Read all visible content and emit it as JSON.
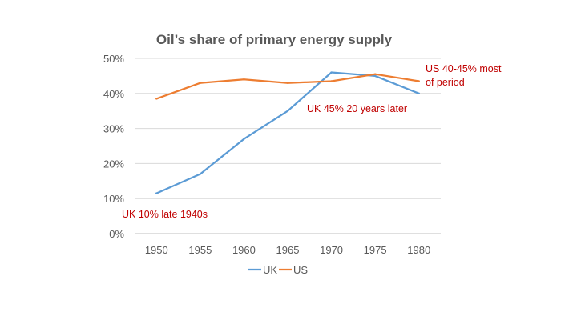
{
  "chart_data": {
    "type": "line",
    "title": "Oil’s share of primary energy supply",
    "xlabel": "",
    "ylabel": "",
    "x": [
      "1950",
      "1955",
      "1960",
      "1965",
      "1970",
      "1975",
      "1980"
    ],
    "ylim": [
      0,
      50
    ],
    "yticks": [
      "0%",
      "10%",
      "20%",
      "30%",
      "40%",
      "50%"
    ],
    "grid": true,
    "legend_position": "bottom",
    "series": [
      {
        "name": "UK",
        "color": "#5b9bd5",
        "values": [
          11.5,
          17,
          27,
          35,
          46,
          45,
          40
        ]
      },
      {
        "name": "US",
        "color": "#ed7d31",
        "values": [
          38.5,
          43,
          44,
          43,
          43.5,
          45.5,
          43.5
        ]
      }
    ],
    "annotations": [
      {
        "text": "UK 10% late 1940s",
        "color": "#c00000"
      },
      {
        "text": "UK 45% 20 years later",
        "color": "#c00000"
      },
      {
        "text": "US 40-45% most",
        "color": "#c00000"
      },
      {
        "text": "of period",
        "color": "#c00000"
      }
    ]
  }
}
